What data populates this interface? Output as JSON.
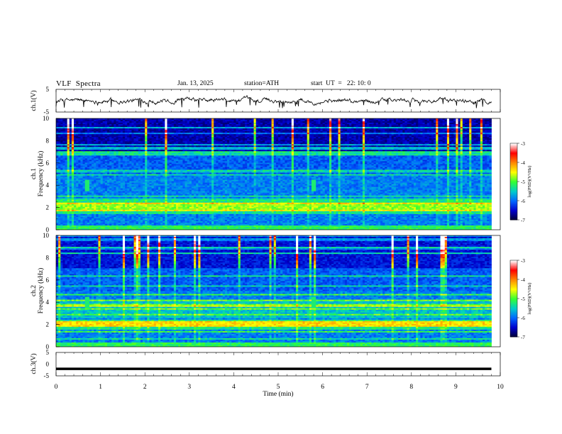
{
  "header": {
    "title": "VLF  Spectra",
    "date": "Jan. 13, 2025",
    "station": "station=ATH",
    "start": "start  UT  =   22: 10: 0"
  },
  "chart_data": [
    {
      "type": "line",
      "panel": "ch1-waveform",
      "ylabel": "ch.1(V)",
      "ylim": [
        -5,
        5
      ],
      "y_ticks": [
        "5",
        "-5"
      ],
      "xlim": [
        0,
        10
      ],
      "trace": {
        "baseline": 0,
        "noise_amplitude": 0.8,
        "spike_min": -3.5,
        "end_time": 9.8
      }
    },
    {
      "type": "heatmap",
      "panel": "ch1-spectrogram",
      "ylabel": "ch.1\nFrequency (kHz)",
      "y_ticks": [
        "0",
        "2",
        "4",
        "6",
        "8",
        "10"
      ],
      "ylim": [
        0,
        10
      ],
      "xlim": [
        0,
        10
      ],
      "data_end_time": 9.8,
      "colorbar": {
        "label": "log(PSD)(V²/Hz)",
        "ticks": [
          "-3",
          "-4",
          "-5",
          "-6",
          "-7"
        ],
        "range": [
          -7,
          -3
        ]
      },
      "bright_band_khz": 2.1,
      "burst_times_min": [
        0.7,
        5.8
      ]
    },
    {
      "type": "heatmap",
      "panel": "ch2-spectrogram",
      "ylabel": "ch.2\nFrequency (kHz)",
      "y_ticks": [
        "0",
        "2",
        "4",
        "6",
        "8",
        "10"
      ],
      "ylim": [
        0,
        10
      ],
      "xlim": [
        0,
        10
      ],
      "data_end_time": 9.8,
      "colorbar": {
        "label": "log(PSD)(V²/Hz)",
        "ticks": [
          "-3",
          "-4",
          "-5",
          "-6",
          "-7"
        ],
        "range": [
          -7,
          -3
        ]
      },
      "bright_band_khz": 2.0,
      "burst_times_min": [
        0.7,
        5.8
      ]
    },
    {
      "type": "line",
      "panel": "ch3-waveform",
      "ylabel": "ch.3(V)",
      "ylim": [
        -5,
        5
      ],
      "y_ticks": [
        "5",
        "0",
        "-5"
      ],
      "xlim": [
        0,
        10
      ],
      "trace": {
        "constant": -2.0,
        "end_time": 9.8
      }
    }
  ],
  "x_axis": {
    "label": "Time  (min)",
    "ticks": [
      "0",
      "1",
      "2",
      "3",
      "4",
      "5",
      "6",
      "7",
      "8",
      "9",
      "10"
    ]
  },
  "colors": {
    "colormap": [
      "#000033",
      "#0000cc",
      "#0066ff",
      "#00cccc",
      "#33ff33",
      "#ffff00",
      "#ff8800",
      "#ff0000",
      "#ffffff"
    ],
    "trace": "#000000"
  }
}
